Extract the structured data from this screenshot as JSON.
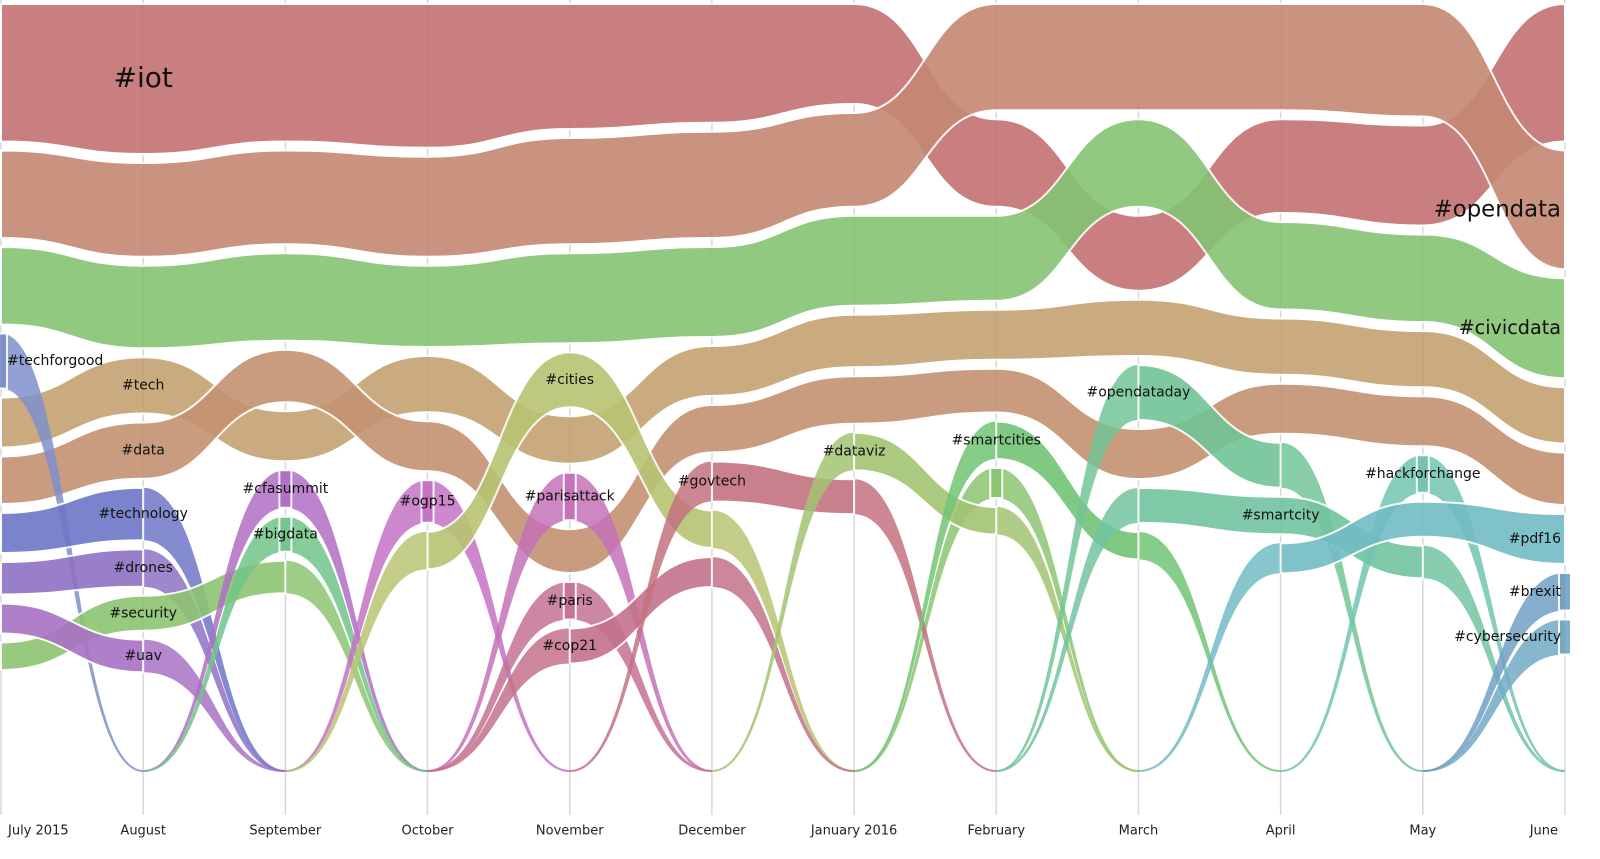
{
  "chart_data": {
    "type": "stream",
    "categories": [
      "July 2015",
      "August",
      "September",
      "October",
      "November",
      "December",
      "January 2016",
      "February",
      "March",
      "April",
      "May",
      "June"
    ],
    "series": [
      {
        "name": "#iot",
        "color": "#c47272",
        "values": [
          110,
          120,
          110,
          115,
          100,
          95,
          80,
          70,
          60,
          75,
          80,
          110
        ]
      },
      {
        "name": "#opendata",
        "color": "#c48872",
        "values": [
          70,
          75,
          75,
          80,
          85,
          85,
          75,
          85,
          85,
          85,
          90,
          95
        ]
      },
      {
        "name": "#civicdata",
        "color": "#84c472",
        "values": [
          62,
          66,
          70,
          65,
          72,
          72,
          72,
          68,
          70,
          70,
          70,
          80
        ]
      },
      {
        "name": "#tech",
        "color": "#c4a272",
        "values": [
          40,
          45,
          40,
          45,
          38,
          40,
          42,
          40,
          45,
          45,
          45,
          45
        ]
      },
      {
        "name": "#data",
        "color": "#c49272",
        "values": [
          38,
          45,
          42,
          40,
          35,
          38,
          38,
          35,
          40,
          40,
          40,
          42
        ]
      },
      {
        "name": "#techforgood",
        "color": "#7f8fcc",
        "values": [
          44,
          null,
          null,
          null,
          null,
          null,
          null,
          null,
          null,
          null,
          null,
          null
        ]
      },
      {
        "name": "#technology",
        "color": "#6e76c8",
        "values": [
          32,
          42,
          null,
          null,
          null,
          null,
          null,
          null,
          null,
          null,
          null,
          null
        ]
      },
      {
        "name": "#drones",
        "color": "#8e72c4",
        "values": [
          26,
          30,
          null,
          null,
          null,
          null,
          null,
          null,
          null,
          null,
          null,
          null
        ]
      },
      {
        "name": "#security",
        "color": "#8cc472",
        "values": [
          22,
          28,
          26,
          null,
          null,
          null,
          null,
          24,
          null,
          null,
          null,
          null
        ]
      },
      {
        "name": "#uav",
        "color": "#a872c4",
        "values": [
          24,
          26,
          null,
          null,
          null,
          null,
          null,
          null,
          null,
          null,
          null,
          null
        ]
      },
      {
        "name": "#cfasummit",
        "color": "#b06ec4",
        "values": [
          null,
          null,
          30,
          null,
          null,
          null,
          null,
          null,
          null,
          null,
          null,
          null
        ]
      },
      {
        "name": "#bigdata",
        "color": "#72c48a",
        "values": [
          null,
          null,
          28,
          null,
          null,
          null,
          null,
          null,
          null,
          null,
          null,
          null
        ]
      },
      {
        "name": "#ogp15",
        "color": "#c472c4",
        "values": [
          null,
          null,
          null,
          34,
          null,
          null,
          null,
          null,
          null,
          null,
          null,
          null
        ]
      },
      {
        "name": "#cities",
        "color": "#b8c472",
        "values": [
          null,
          null,
          null,
          30,
          44,
          30,
          null,
          null,
          null,
          null,
          null,
          null
        ]
      },
      {
        "name": "#parisattack",
        "color": "#c472b8",
        "values": [
          null,
          null,
          null,
          null,
          38,
          null,
          null,
          null,
          null,
          null,
          null,
          null
        ]
      },
      {
        "name": "#paris",
        "color": "#c47294",
        "values": [
          null,
          null,
          null,
          null,
          30,
          null,
          null,
          null,
          null,
          null,
          null,
          null
        ]
      },
      {
        "name": "#cop21",
        "color": "#c4728a",
        "values": [
          null,
          null,
          null,
          null,
          28,
          24,
          null,
          null,
          null,
          null,
          null,
          null
        ]
      },
      {
        "name": "#govtech",
        "color": "#c47280",
        "values": [
          null,
          null,
          null,
          null,
          null,
          32,
          28,
          null,
          null,
          null,
          null,
          null
        ]
      },
      {
        "name": "#dataviz",
        "color": "#a2c472",
        "values": [
          null,
          null,
          null,
          null,
          null,
          null,
          30,
          22,
          null,
          null,
          null,
          null
        ]
      },
      {
        "name": "#smartcities",
        "color": "#72c476",
        "values": [
          null,
          null,
          null,
          null,
          null,
          null,
          null,
          30,
          22,
          null,
          null,
          null
        ]
      },
      {
        "name": "#opendataday",
        "color": "#72c496",
        "values": [
          null,
          null,
          null,
          null,
          null,
          null,
          null,
          null,
          44,
          36,
          null,
          null
        ]
      },
      {
        "name": "#smartcity",
        "color": "#72c4a0",
        "values": [
          null,
          null,
          null,
          null,
          null,
          null,
          null,
          null,
          28,
          30,
          26,
          null
        ]
      },
      {
        "name": "#hackforchange",
        "color": "#72c4b0",
        "values": [
          null,
          null,
          null,
          null,
          null,
          null,
          null,
          null,
          null,
          null,
          30,
          null
        ]
      },
      {
        "name": "#pdf16",
        "color": "#72bcc4",
        "values": [
          null,
          null,
          null,
          null,
          null,
          null,
          null,
          null,
          null,
          24,
          28,
          40
        ]
      },
      {
        "name": "#cybersecurity",
        "color": "#72aac4",
        "values": [
          null,
          null,
          null,
          null,
          null,
          null,
          null,
          null,
          null,
          null,
          null,
          28
        ]
      },
      {
        "name": "#brexit",
        "color": "#72a0c4",
        "values": [
          null,
          null,
          null,
          null,
          null,
          null,
          null,
          null,
          null,
          null,
          null,
          30
        ]
      }
    ],
    "grid": true
  }
}
